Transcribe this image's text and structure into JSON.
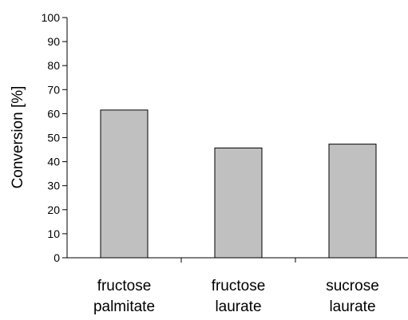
{
  "chart_data": {
    "type": "bar",
    "categories": [
      [
        "fructose",
        "palmitate"
      ],
      [
        "fructose",
        "laurate"
      ],
      [
        "sucrose",
        "laurate"
      ]
    ],
    "values": [
      61.5,
      45.7,
      47.3
    ],
    "title": "",
    "xlabel": "",
    "ylabel": "Conversion [%]",
    "ylim": [
      0,
      100
    ],
    "yticks": [
      0,
      10,
      20,
      30,
      40,
      50,
      60,
      70,
      80,
      90,
      100
    ],
    "ytick_labels": [
      "0",
      "10",
      "20",
      "30",
      "40",
      "50",
      "60",
      "70",
      "80",
      "90",
      "100"
    ],
    "grid": false,
    "legend": "none",
    "bar_color": "#c0c0c0",
    "edge_color": "#000000"
  }
}
